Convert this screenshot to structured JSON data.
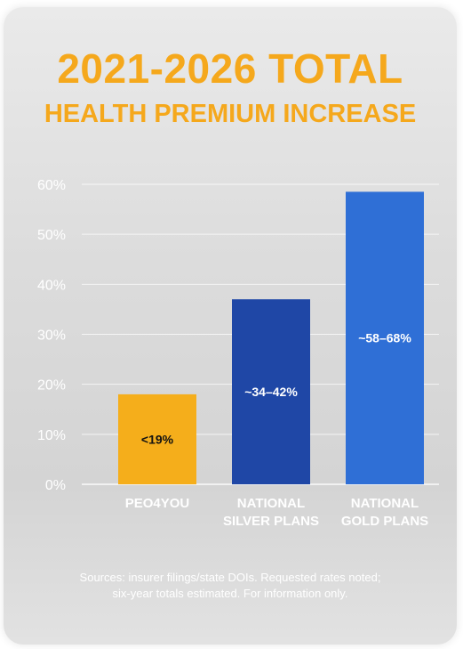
{
  "chart_data": {
    "type": "bar",
    "title": "2021-2026 TOTAL",
    "subtitle": "HEALTH PREMIUM INCREASE",
    "categories": [
      "PEO4YOU",
      "NATIONAL\nSILVER PLANS",
      "NATIONAL\nGOLD PLANS"
    ],
    "values": [
      18,
      37,
      58.5
    ],
    "data_labels": [
      "<19%",
      "~34–42%",
      "~58–68%"
    ],
    "colors": [
      "#f5ae1b",
      "#1f47a6",
      "#2f6fd6"
    ],
    "label_colors": [
      "#111111",
      "#ffffff",
      "#ffffff"
    ],
    "yticks": [
      "0%",
      "10%",
      "20%",
      "30%",
      "40%",
      "50%",
      "60%"
    ],
    "ylim": [
      0,
      60
    ],
    "grid": true,
    "xlabel": "",
    "ylabel": ""
  },
  "footer": {
    "source": "Sources: insurer filings/state DOIs. Requested rates noted;\nsix-year totals estimated. For information only."
  }
}
